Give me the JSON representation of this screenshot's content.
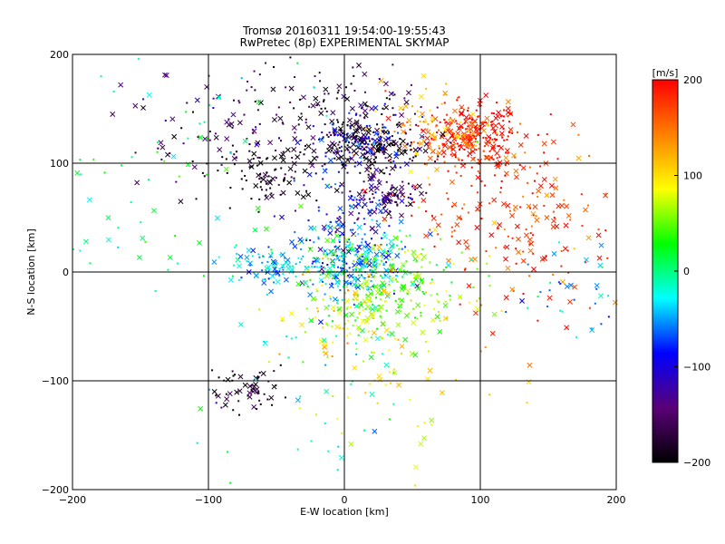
{
  "chart_data": {
    "type": "scatter",
    "title": "Tromsø 20160311 19:54:00-19:55:43",
    "subtitle": "RwPretec (8p) EXPERIMENTAL SKYMAP",
    "xlabel": "E-W location [km]",
    "ylabel": "N-S location [km]",
    "xlim": [
      -200,
      200
    ],
    "ylim": [
      -200,
      200
    ],
    "xticks": [
      -200,
      -100,
      0,
      100,
      200
    ],
    "yticks": [
      -200,
      -100,
      0,
      100,
      200
    ],
    "grid": true,
    "markers": [
      "dot",
      "x"
    ],
    "colorbar": {
      "unit": "[m/s]",
      "range": [
        -200,
        200
      ],
      "ticks": [
        200,
        100,
        0,
        -100,
        -200
      ],
      "colormap": [
        "#000000",
        "#5a0078",
        "#0000ff",
        "#00ffff",
        "#00ff00",
        "#ffff00",
        "#ff8000",
        "#ff0000"
      ]
    },
    "clusters": [
      {
        "x": 95,
        "y": 125,
        "spread": [
          18,
          14
        ],
        "velocity": 190,
        "count": 260
      },
      {
        "x": 60,
        "y": 130,
        "spread": [
          25,
          18
        ],
        "velocity": 130,
        "count": 110
      },
      {
        "x": 110,
        "y": 60,
        "spread": [
          40,
          40
        ],
        "velocity": 180,
        "count": 160
      },
      {
        "x": 150,
        "y": 40,
        "spread": [
          30,
          40
        ],
        "velocity": 170,
        "count": 70
      },
      {
        "x": 20,
        "y": 115,
        "spread": [
          18,
          12
        ],
        "velocity": -190,
        "count": 180
      },
      {
        "x": -10,
        "y": 150,
        "spread": [
          30,
          18
        ],
        "velocity": -180,
        "count": 120
      },
      {
        "x": -55,
        "y": 95,
        "spread": [
          18,
          15
        ],
        "velocity": -190,
        "count": 100
      },
      {
        "x": 30,
        "y": 70,
        "spread": [
          12,
          10
        ],
        "velocity": -150,
        "count": 90
      },
      {
        "x": 10,
        "y": 120,
        "spread": [
          25,
          15
        ],
        "velocity": -90,
        "count": 90
      },
      {
        "x": 5,
        "y": 40,
        "spread": [
          20,
          25
        ],
        "velocity": -95,
        "count": 120
      },
      {
        "x": 5,
        "y": 5,
        "spread": [
          20,
          15
        ],
        "velocity": -40,
        "count": 220
      },
      {
        "x": -55,
        "y": 5,
        "spread": [
          15,
          8
        ],
        "velocity": -40,
        "count": 80
      },
      {
        "x": 30,
        "y": -10,
        "spread": [
          30,
          25
        ],
        "velocity": 50,
        "count": 260
      },
      {
        "x": 0,
        "y": -40,
        "spread": [
          25,
          20
        ],
        "velocity": 80,
        "count": 90
      },
      {
        "x": -70,
        "y": -110,
        "spread": [
          12,
          10
        ],
        "velocity": -190,
        "count": 60
      },
      {
        "x": -90,
        "y": 130,
        "spread": [
          35,
          30
        ],
        "velocity": -160,
        "count": 80
      },
      {
        "x": 170,
        "y": -20,
        "spread": [
          20,
          25
        ],
        "velocity": -40,
        "count": 35
      },
      {
        "x": 45,
        "y": -110,
        "spread": [
          40,
          40
        ],
        "velocity": 100,
        "count": 60
      },
      {
        "x": -130,
        "y": 100,
        "spread": [
          50,
          70
        ],
        "velocity": 0,
        "count": 90
      },
      {
        "x": -20,
        "y": -120,
        "spread": [
          50,
          40
        ],
        "velocity": -20,
        "count": 40
      }
    ]
  }
}
